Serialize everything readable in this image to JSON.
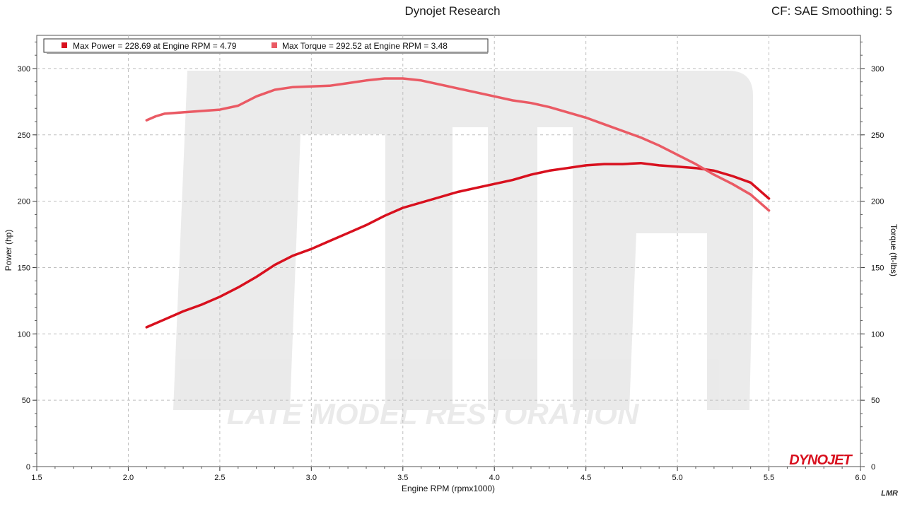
{
  "header": {
    "title": "Dynojet Research",
    "right_text": "CF: SAE Smoothing: 5"
  },
  "watermark": {
    "text": "LATE MODEL RESTORATION"
  },
  "brand": {
    "logo_text": "DYNOJET",
    "corner_mark": "LMR"
  },
  "colors": {
    "power": "#d8101e",
    "torque": "#ea5a64",
    "grid": "#bfbfbf"
  },
  "chart_data": {
    "type": "line",
    "xlabel": "Engine RPM (rpmx1000)",
    "ylabel": "Power (hp)",
    "y2label": "Torque (ft-lbs)",
    "xlim": [
      1.5,
      6.0
    ],
    "ylim": [
      0,
      325
    ],
    "y2lim": [
      0,
      325
    ],
    "x_ticks": [
      "1.5",
      "2.0",
      "2.5",
      "3.0",
      "3.5",
      "4.0",
      "4.5",
      "5.0",
      "5.5",
      "6.0"
    ],
    "y_ticks": [
      "0",
      "50",
      "100",
      "150",
      "200",
      "250",
      "300"
    ],
    "y2_ticks": [
      "0",
      "50",
      "100",
      "150",
      "200",
      "250",
      "300"
    ],
    "grid": true,
    "legend_position": "top-left",
    "legend": [
      "Max Power = 228.69 at Engine RPM = 4.79",
      "Max Torque = 292.52 at Engine RPM = 3.48"
    ],
    "series": [
      {
        "key": "power",
        "axis": "left",
        "x": [
          2.1,
          2.2,
          2.3,
          2.4,
          2.5,
          2.6,
          2.7,
          2.8,
          2.9,
          3.0,
          3.1,
          3.2,
          3.3,
          3.4,
          3.5,
          3.6,
          3.7,
          3.8,
          3.9,
          4.0,
          4.1,
          4.2,
          4.3,
          4.4,
          4.5,
          4.6,
          4.7,
          4.8,
          4.9,
          5.0,
          5.1,
          5.2,
          5.3,
          5.4,
          5.5
        ],
        "y": [
          105,
          111,
          117,
          122,
          128,
          135,
          143,
          152,
          159,
          164,
          170,
          176,
          182,
          189,
          195,
          199,
          203,
          207,
          210,
          213,
          216,
          220,
          223,
          225,
          227,
          228,
          228,
          228.7,
          227,
          226,
          225,
          223,
          219,
          214,
          202
        ]
      },
      {
        "key": "torque",
        "axis": "right",
        "x": [
          2.1,
          2.15,
          2.2,
          2.3,
          2.4,
          2.5,
          2.6,
          2.7,
          2.8,
          2.9,
          3.0,
          3.1,
          3.2,
          3.3,
          3.4,
          3.5,
          3.6,
          3.7,
          3.8,
          3.9,
          4.0,
          4.1,
          4.2,
          4.3,
          4.4,
          4.5,
          4.6,
          4.7,
          4.8,
          4.9,
          5.0,
          5.1,
          5.2,
          5.3,
          5.4,
          5.5
        ],
        "y": [
          261,
          264,
          266,
          267,
          268,
          269,
          272,
          279,
          284,
          286,
          286.5,
          287,
          289,
          291,
          292.5,
          292.5,
          291,
          288,
          285,
          282,
          279,
          276,
          274,
          271,
          267,
          263,
          258,
          253,
          248,
          242,
          235,
          228,
          220,
          213,
          205,
          193
        ]
      }
    ]
  }
}
